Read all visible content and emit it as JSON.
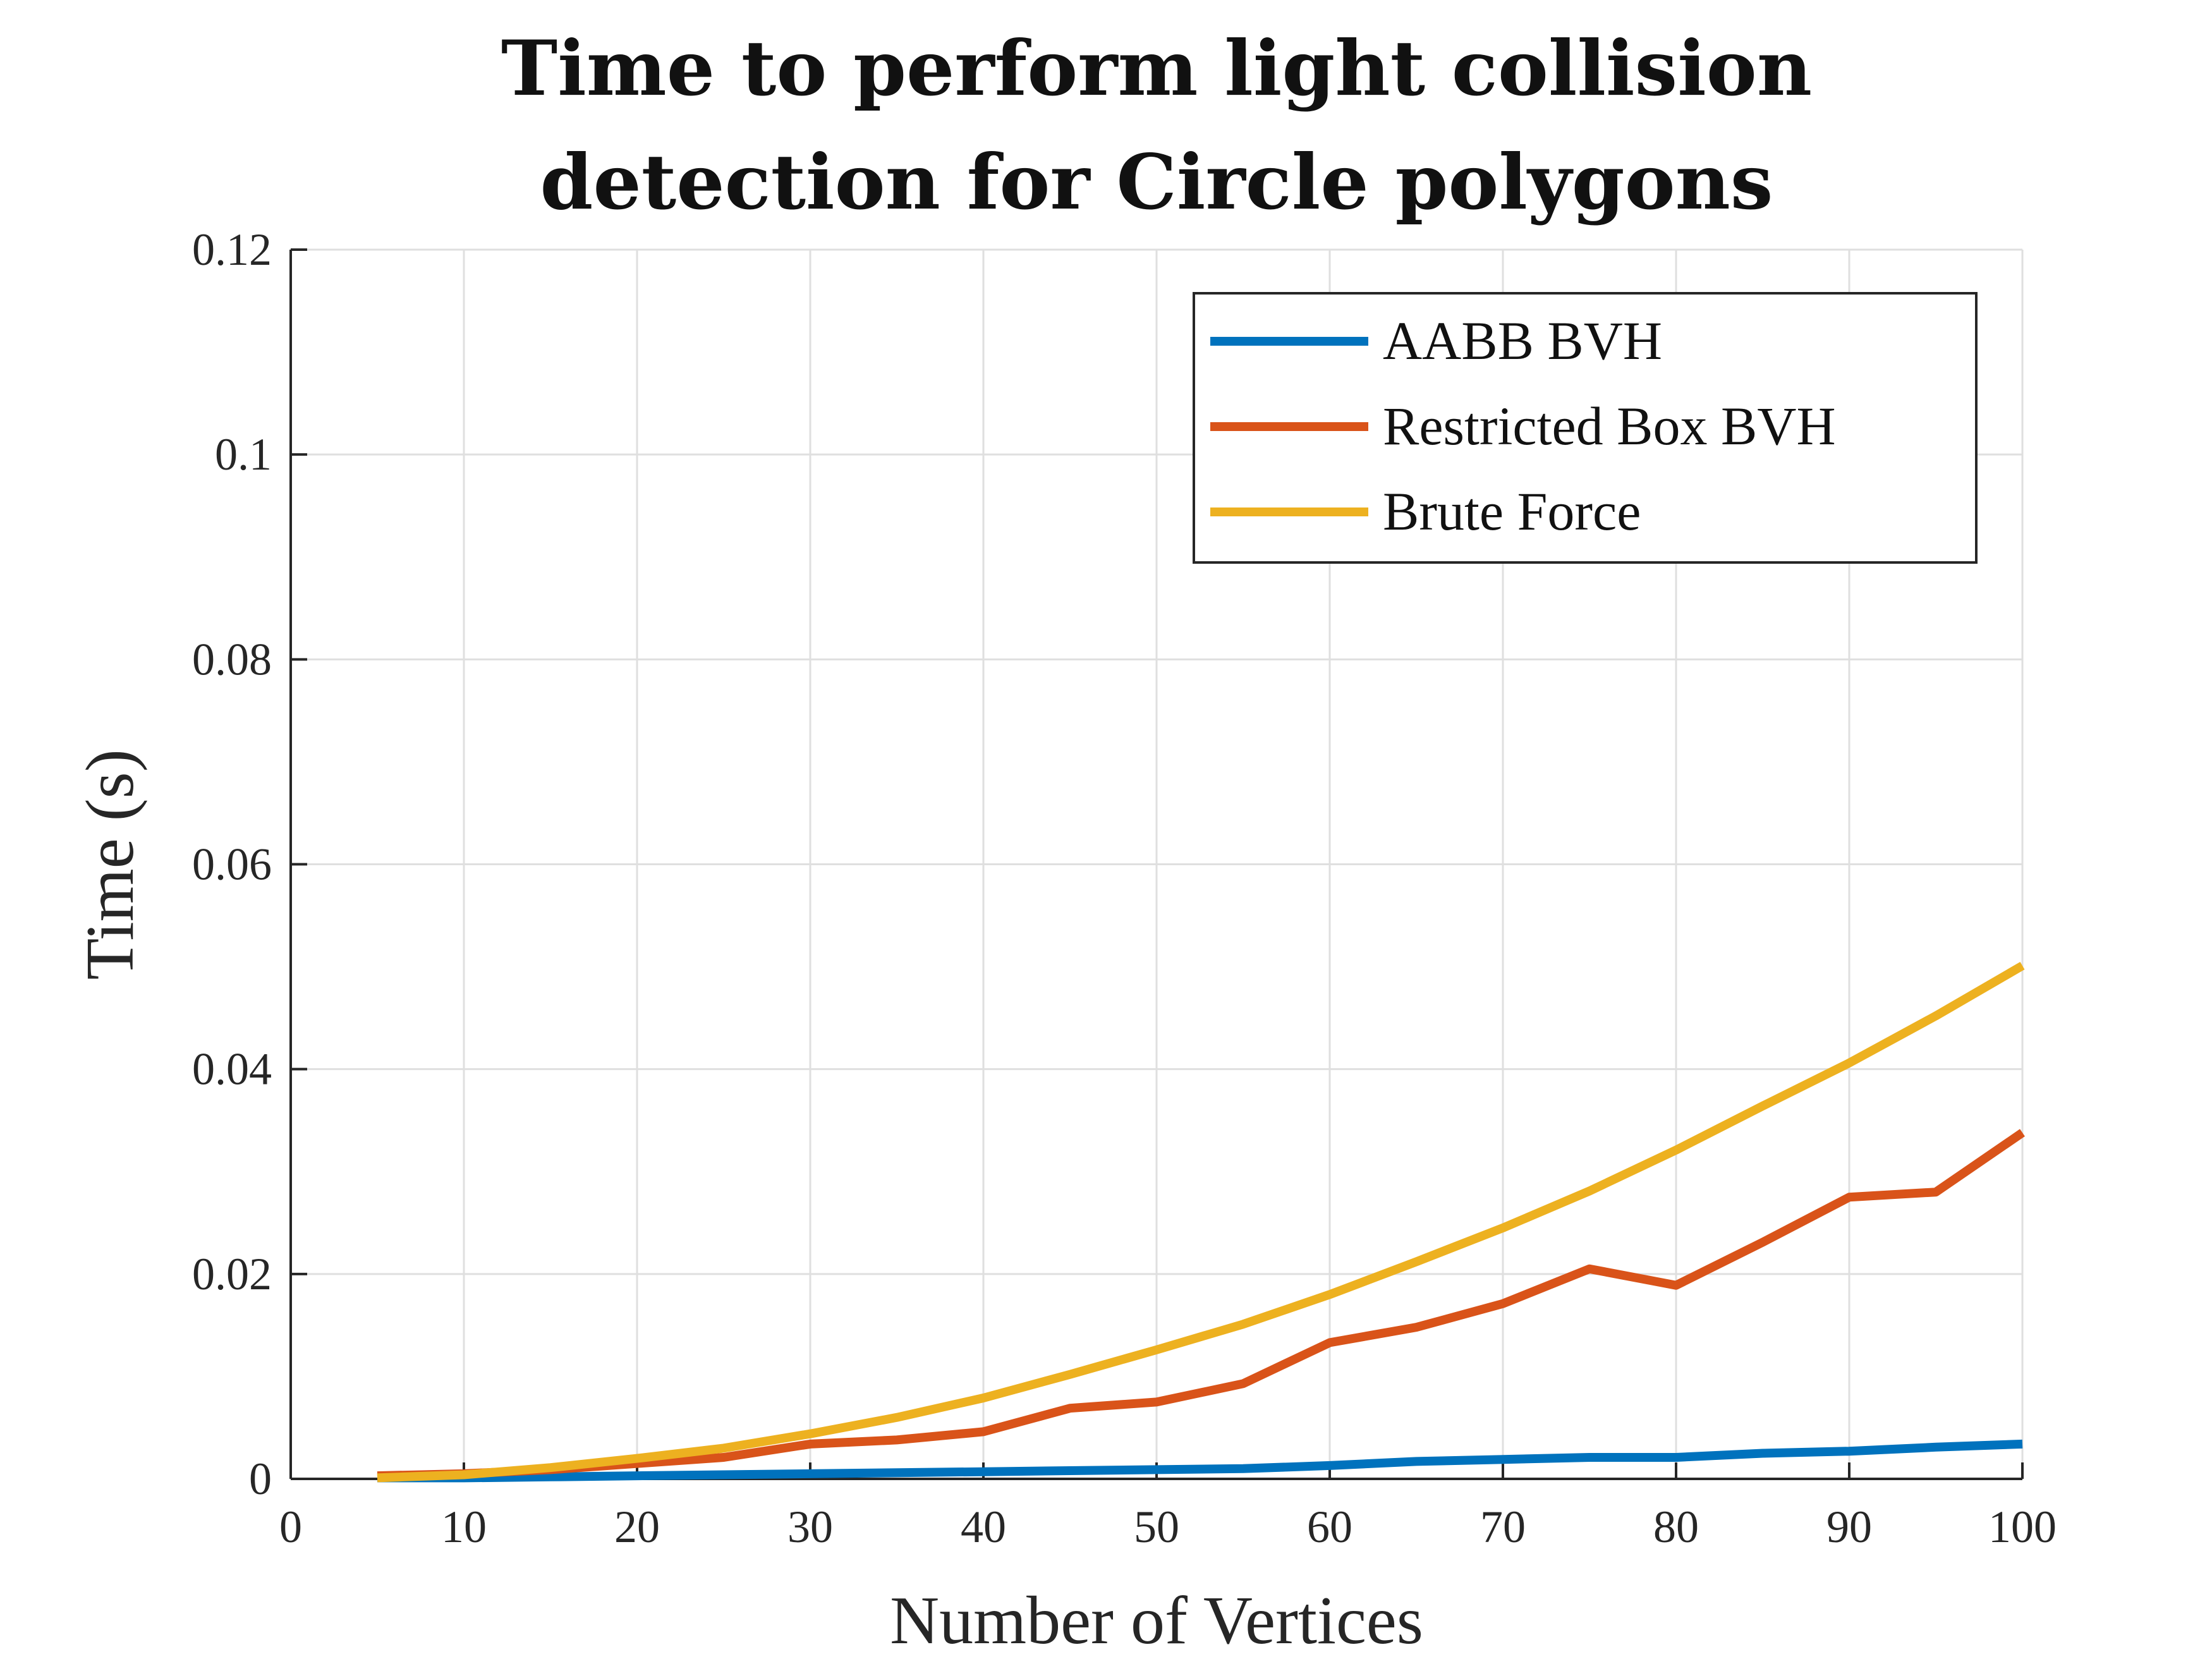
{
  "chart_data": {
    "type": "line",
    "title_lines": [
      "Time to perform light collision",
      "detection for Circle polygons"
    ],
    "xlabel": "Number of Vertices",
    "ylabel": "Time (s)",
    "xlim": [
      0,
      100
    ],
    "ylim": [
      0,
      0.12
    ],
    "xticks": [
      0,
      10,
      20,
      30,
      40,
      50,
      60,
      70,
      80,
      90,
      100
    ],
    "xtick_labels": [
      "0",
      "10",
      "20",
      "30",
      "40",
      "50",
      "60",
      "70",
      "80",
      "90",
      "100"
    ],
    "yticks": [
      0,
      0.02,
      0.04,
      0.06,
      0.08,
      0.1,
      0.12
    ],
    "ytick_labels": [
      "0",
      "0.02",
      "0.04",
      "0.06",
      "0.08",
      "0.1",
      "0.12"
    ],
    "grid": true,
    "legend_position": "top-right",
    "x": [
      5,
      10,
      15,
      20,
      25,
      30,
      35,
      40,
      45,
      50,
      55,
      60,
      65,
      70,
      75,
      80,
      85,
      90,
      95,
      100
    ],
    "series": [
      {
        "name": "AABB BVH",
        "color": "#0072BD",
        "values": [
          0.0001,
          0.0001,
          0.0002,
          0.0003,
          0.0004,
          0.0005,
          0.0006,
          0.0007,
          0.0008,
          0.0009,
          0.001,
          0.0013,
          0.0017,
          0.0019,
          0.0021,
          0.0021,
          0.0025,
          0.0027,
          0.0031,
          0.0034
        ]
      },
      {
        "name": "Restricted Box BVH",
        "color": "#D95319",
        "values": [
          0.0003,
          0.0005,
          0.0009,
          0.0015,
          0.0021,
          0.0034,
          0.0038,
          0.0046,
          0.0069,
          0.0075,
          0.0093,
          0.0133,
          0.0148,
          0.0171,
          0.0205,
          0.0189,
          0.0231,
          0.0275,
          0.028,
          0.0338
        ]
      },
      {
        "name": "Brute Force",
        "color": "#EDB120",
        "values": [
          0.0001,
          0.0004,
          0.0011,
          0.002,
          0.003,
          0.0044,
          0.006,
          0.0079,
          0.0102,
          0.0126,
          0.0151,
          0.018,
          0.0212,
          0.0245,
          0.0281,
          0.0321,
          0.0364,
          0.0406,
          0.0452,
          0.0501
        ]
      }
    ]
  }
}
